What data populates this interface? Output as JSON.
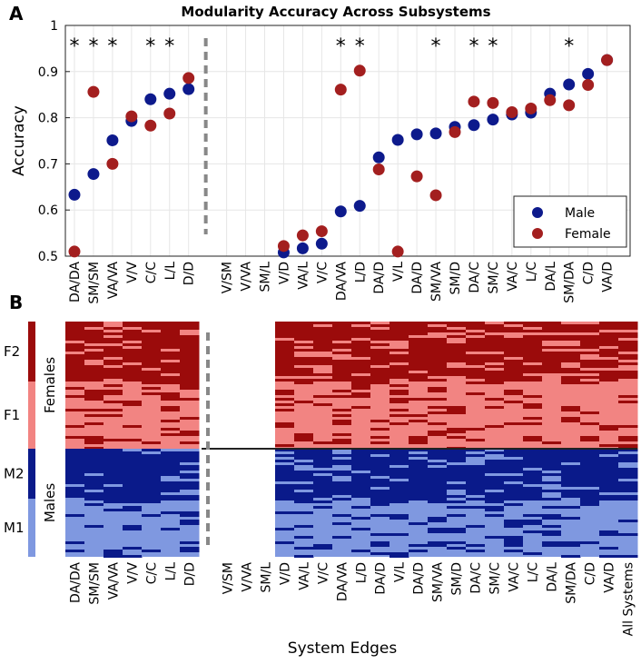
{
  "panels": {
    "a": "A",
    "b": "B"
  },
  "colors": {
    "male": "#0d1a8c",
    "female": "#a31f1f",
    "f2": "#9b0b0b",
    "f1": "#f28482",
    "m2": "#0a1a8a",
    "m1": "#7f98e0",
    "dashed": "#888888",
    "grid": "#e6e6e6"
  },
  "chart_data": [
    {
      "type": "scatter",
      "title": "Modularity Accuracy Across Subsystems",
      "xlabel": "",
      "ylabel": "Accuracy",
      "ylim": [
        0.5,
        1.0
      ],
      "yticks": [
        0.5,
        0.6,
        0.7,
        0.8,
        0.9,
        1
      ],
      "ytick_labels": [
        "0.5",
        "0.6",
        "0.7",
        "0.8",
        "0.9",
        "1"
      ],
      "categories": [
        "DA/DA",
        "SM/SM",
        "VA/VA",
        "V/V",
        "C/C",
        "L/L",
        "D/D",
        "",
        "V/SM",
        "V/VA",
        "SM/L",
        "V/D",
        "VA/L",
        "V/C",
        "DA/VA",
        "L/D",
        "DA/D",
        "V/L",
        "DA/D",
        "SM/VA",
        "SM/D",
        "DA/C",
        "SM/C",
        "VA/C",
        "L/C",
        "DA/L",
        "SM/DA",
        "C/D",
        "VA/D"
      ],
      "series": [
        {
          "name": "Male",
          "values": [
            0.633,
            0.678,
            0.751,
            0.793,
            0.84,
            0.852,
            0.862,
            null,
            null,
            null,
            null,
            0.508,
            0.517,
            0.527,
            0.597,
            0.609,
            0.714,
            0.752,
            0.764,
            0.766,
            0.78,
            0.784,
            0.796,
            0.807,
            0.811,
            0.852,
            0.872,
            0.895,
            0.925
          ]
        },
        {
          "name": "Female",
          "values": [
            0.51,
            0.856,
            0.7,
            0.803,
            0.783,
            0.809,
            0.886,
            null,
            null,
            null,
            null,
            0.522,
            0.545,
            0.554,
            0.861,
            0.902,
            0.688,
            0.51,
            0.673,
            0.632,
            0.769,
            0.835,
            0.832,
            0.812,
            0.82,
            0.838,
            0.827,
            0.871,
            0.925
          ]
        }
      ],
      "significance": [
        true,
        true,
        true,
        false,
        true,
        true,
        false,
        false,
        false,
        false,
        false,
        false,
        false,
        false,
        true,
        true,
        false,
        false,
        false,
        true,
        false,
        true,
        true,
        false,
        false,
        false,
        true,
        false,
        false
      ],
      "significance_marker": "*",
      "divider_after": "D/D",
      "legend_position": "bottom-right"
    },
    {
      "type": "heatmap",
      "xlabel": "System Edges",
      "categories": [
        "DA/DA",
        "SM/SM",
        "VA/VA",
        "V/V",
        "C/C",
        "L/L",
        "D/D",
        "",
        "V/SM",
        "V/VA",
        "SM/L",
        "V/D",
        "VA/L",
        "V/C",
        "DA/VA",
        "L/D",
        "DA/D",
        "V/L",
        "DA/D",
        "SM/VA",
        "SM/D",
        "DA/C",
        "SM/C",
        "VA/C",
        "L/C",
        "DA/L",
        "SM/DA",
        "C/D",
        "VA/D",
        "All Systems"
      ],
      "groups": [
        {
          "name": "Females",
          "clusters": [
            "F2",
            "F1"
          ]
        },
        {
          "name": "Males",
          "clusters": [
            "M2",
            "M1"
          ]
        }
      ],
      "cluster_colors": {
        "F2": "#9b0b0b",
        "F1": "#f28482",
        "M2": "#0a1a8a",
        "M1": "#7f98e0"
      },
      "empty_columns": [
        "V/SM",
        "V/VA",
        "SM/L"
      ]
    }
  ],
  "legend": {
    "male": "Male",
    "female": "Female"
  }
}
